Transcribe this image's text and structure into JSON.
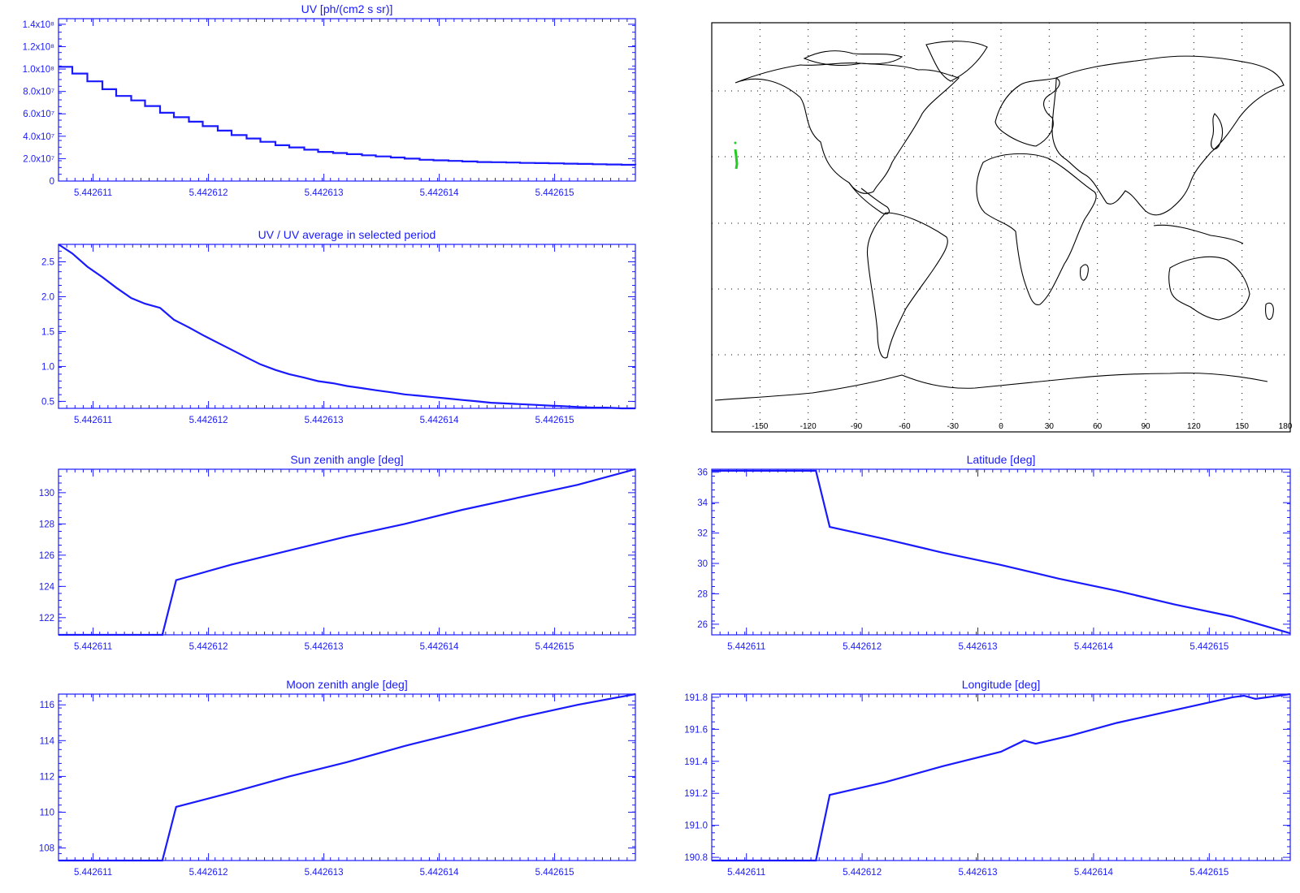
{
  "colors": {
    "plot": "#1a1aff",
    "map_frame": "#000000",
    "coast": "#000000",
    "track": "#22cc22"
  },
  "chart_data": [
    {
      "type": "line",
      "id": "uv",
      "title": "UV [ph/(cm2 s sr)]",
      "xlabel": "",
      "ylabel": "",
      "step": true,
      "xlim": [
        5.4426107,
        5.4426157
      ],
      "ylim": [
        0,
        145000000
      ],
      "xticks": [
        5.442611,
        5.442612,
        5.442613,
        5.442614,
        5.442615
      ],
      "xtick_labels": [
        "5.442611",
        "5.442612",
        "5.442613",
        "5.442614",
        "5.442615"
      ],
      "yticks": [
        0,
        20000000,
        40000000,
        60000000,
        80000000,
        100000000,
        120000000,
        140000000
      ],
      "ytick_labels": [
        "0",
        "2.0x10⁷",
        "4.0x10⁷",
        "6.0x10⁷",
        "8.0x10⁷",
        "1.0x10⁸",
        "1.2x10⁸",
        "1.4x10⁸"
      ],
      "x": [
        5.4426107,
        5.44261082,
        5.44261095,
        5.44261108,
        5.4426112,
        5.44261133,
        5.44261145,
        5.44261158,
        5.4426117,
        5.44261183,
        5.44261195,
        5.44261208,
        5.4426122,
        5.44261233,
        5.44261245,
        5.44261258,
        5.4426127,
        5.44261283,
        5.44261295,
        5.44261308,
        5.4426132,
        5.44261333,
        5.44261345,
        5.44261358,
        5.4426137,
        5.44261383,
        5.44261395,
        5.44261408,
        5.4426142,
        5.44261433,
        5.44261445,
        5.44261458,
        5.4426147,
        5.44261483,
        5.44261495,
        5.44261508,
        5.4426152,
        5.44261533,
        5.44261545,
        5.44261558,
        5.4426157
      ],
      "series": [
        {
          "values": [
            102000000,
            96000000,
            89000000,
            82000000,
            76000000,
            72000000,
            67000000,
            61000000,
            57000000,
            53000000,
            49000000,
            45000000,
            41000000,
            38000000,
            35000000,
            32000000,
            30000000,
            28000000,
            26000000,
            25000000,
            24000000,
            23000000,
            22000000,
            21000000,
            20000000,
            19000000,
            18500000,
            18000000,
            17500000,
            17000000,
            16800000,
            16500000,
            16200000,
            16000000,
            15800000,
            15500000,
            15300000,
            15000000,
            14800000,
            14500000,
            14300000
          ]
        }
      ]
    },
    {
      "type": "line",
      "id": "uvratio",
      "title": "UV / UV average in selected period",
      "xlabel": "",
      "ylabel": "",
      "xlim": [
        5.4426107,
        5.4426157
      ],
      "ylim": [
        0.4,
        2.75
      ],
      "xticks": [
        5.442611,
        5.442612,
        5.442613,
        5.442614,
        5.442615
      ],
      "xtick_labels": [
        "5.442611",
        "5.442612",
        "5.442613",
        "5.442614",
        "5.442615"
      ],
      "yticks": [
        0.5,
        1.0,
        1.5,
        2.0,
        2.5
      ],
      "ytick_labels": [
        "0.5",
        "1.0",
        "1.5",
        "2.0",
        "2.5"
      ],
      "x": [
        5.4426107,
        5.44261082,
        5.44261095,
        5.44261108,
        5.4426112,
        5.44261133,
        5.44261145,
        5.44261158,
        5.4426117,
        5.44261183,
        5.44261195,
        5.44261208,
        5.4426122,
        5.44261233,
        5.44261245,
        5.44261258,
        5.4426127,
        5.44261283,
        5.44261295,
        5.44261308,
        5.4426132,
        5.44261333,
        5.44261345,
        5.44261358,
        5.4426137,
        5.44261383,
        5.44261395,
        5.44261408,
        5.4426142,
        5.44261433,
        5.44261445,
        5.44261458,
        5.4426147,
        5.44261483,
        5.44261495,
        5.44261508,
        5.4426152,
        5.44261533,
        5.44261545,
        5.44261558,
        5.4426157
      ],
      "series": [
        {
          "values": [
            2.75,
            2.62,
            2.43,
            2.28,
            2.13,
            1.98,
            1.9,
            1.84,
            1.67,
            1.56,
            1.45,
            1.34,
            1.24,
            1.13,
            1.03,
            0.95,
            0.89,
            0.84,
            0.79,
            0.76,
            0.72,
            0.69,
            0.66,
            0.63,
            0.6,
            0.58,
            0.56,
            0.54,
            0.52,
            0.5,
            0.48,
            0.47,
            0.46,
            0.45,
            0.44,
            0.43,
            0.42,
            0.41,
            0.41,
            0.4,
            0.4
          ]
        }
      ]
    },
    {
      "type": "line",
      "id": "sza",
      "title": "Sun zenith angle [deg]",
      "xlabel": "",
      "ylabel": "",
      "xlim": [
        5.4426107,
        5.4426157
      ],
      "ylim": [
        120.9,
        131.5
      ],
      "xticks": [
        5.442611,
        5.442612,
        5.442613,
        5.442614,
        5.442615
      ],
      "xtick_labels": [
        "5.442611",
        "5.442612",
        "5.442613",
        "5.442614",
        "5.442615"
      ],
      "yticks": [
        122,
        124,
        126,
        128,
        130
      ],
      "ytick_labels": [
        "122",
        "124",
        "126",
        "128",
        "130"
      ],
      "x": [
        5.4426107,
        5.4426116,
        5.44261172,
        5.4426122,
        5.4426127,
        5.4426132,
        5.4426137,
        5.4426142,
        5.4426147,
        5.4426152,
        5.4426157
      ],
      "series": [
        {
          "values": [
            120.9,
            120.9,
            124.4,
            125.4,
            126.3,
            127.2,
            128.0,
            128.9,
            129.7,
            130.5,
            131.5
          ]
        }
      ]
    },
    {
      "type": "line",
      "id": "lat",
      "title": "Latitude [deg]",
      "xlabel": "",
      "ylabel": "",
      "xlim": [
        5.4426107,
        5.4426157
      ],
      "ylim": [
        25.3,
        36.2
      ],
      "xticks": [
        5.442611,
        5.442612,
        5.442613,
        5.442614,
        5.442615
      ],
      "xtick_labels": [
        "5.442611",
        "5.442612",
        "5.442613",
        "5.442614",
        "5.442615"
      ],
      "yticks": [
        26,
        28,
        30,
        32,
        34,
        36
      ],
      "ytick_labels": [
        "26",
        "28",
        "30",
        "32",
        "34",
        "36"
      ],
      "x": [
        5.4426107,
        5.4426116,
        5.44261172,
        5.4426122,
        5.4426127,
        5.4426132,
        5.4426137,
        5.4426142,
        5.4426147,
        5.4426152,
        5.4426157
      ],
      "series": [
        {
          "values": [
            36.1,
            36.1,
            32.4,
            31.6,
            30.7,
            29.9,
            29.0,
            28.2,
            27.3,
            26.5,
            25.4
          ]
        }
      ]
    },
    {
      "type": "line",
      "id": "mza",
      "title": "Moon zenith angle [deg]",
      "xlabel": "",
      "ylabel": "",
      "xlim": [
        5.4426107,
        5.4426157
      ],
      "ylim": [
        107.3,
        116.6
      ],
      "xticks": [
        5.442611,
        5.442612,
        5.442613,
        5.442614,
        5.442615
      ],
      "xtick_labels": [
        "5.442611",
        "5.442612",
        "5.442613",
        "5.442614",
        "5.442615"
      ],
      "yticks": [
        108,
        110,
        112,
        114,
        116
      ],
      "ytick_labels": [
        "108",
        "110",
        "112",
        "114",
        "116"
      ],
      "x": [
        5.4426107,
        5.4426116,
        5.44261172,
        5.4426122,
        5.4426127,
        5.4426132,
        5.4426137,
        5.4426142,
        5.4426147,
        5.4426152,
        5.4426157
      ],
      "series": [
        {
          "values": [
            107.3,
            107.3,
            110.3,
            111.1,
            112.0,
            112.8,
            113.7,
            114.5,
            115.3,
            116.0,
            116.6
          ]
        }
      ]
    },
    {
      "type": "line",
      "id": "lon",
      "title": "Longitude [deg]",
      "xlabel": "",
      "ylabel": "",
      "xlim": [
        5.4426107,
        5.4426157
      ],
      "ylim": [
        190.78,
        191.82
      ],
      "xticks": [
        5.442611,
        5.442612,
        5.442613,
        5.442614,
        5.442615
      ],
      "xtick_labels": [
        "5.442611",
        "5.442612",
        "5.442613",
        "5.442614",
        "5.442615"
      ],
      "yticks": [
        190.8,
        191.0,
        191.2,
        191.4,
        191.6,
        191.8
      ],
      "ytick_labels": [
        "190.8",
        "191.0",
        "191.2",
        "191.4",
        "191.6",
        "191.8"
      ],
      "x": [
        5.4426107,
        5.4426116,
        5.44261172,
        5.4426122,
        5.4426127,
        5.4426132,
        5.4426134,
        5.4426135,
        5.4426138,
        5.4426142,
        5.4426147,
        5.4426152,
        5.4426153,
        5.4426154,
        5.4426157
      ],
      "series": [
        {
          "values": [
            190.78,
            190.78,
            191.19,
            191.27,
            191.37,
            191.46,
            191.53,
            191.51,
            191.56,
            191.64,
            191.72,
            191.8,
            191.81,
            191.79,
            191.82
          ]
        }
      ]
    }
  ],
  "map": {
    "xtick_labels": [
      "-150",
      "-120",
      "-90",
      "-60",
      "-30",
      "0",
      "30",
      "60",
      "90",
      "120",
      "150",
      "180"
    ]
  }
}
